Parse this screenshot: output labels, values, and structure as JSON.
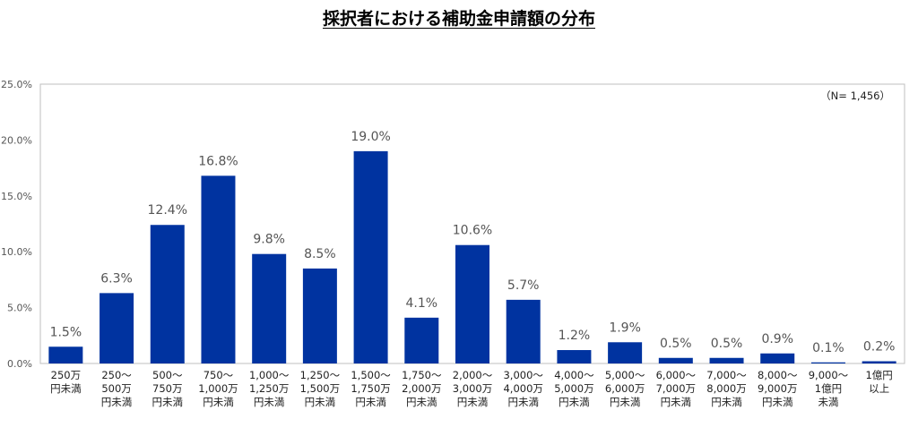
{
  "chart_data": {
    "type": "bar",
    "title": "採択者における補助金申請額の分布",
    "note": "（N= 1,456）",
    "color": "#0033a0",
    "ylim": [
      0,
      25
    ],
    "yticks": [
      "0.0%",
      "5.0%",
      "10.0%",
      "15.0%",
      "20.0%",
      "25.0%"
    ],
    "grid": false,
    "categories": [
      [
        "250万",
        "円未満"
      ],
      [
        "250～",
        "500万",
        "円未満"
      ],
      [
        "500～",
        "750万",
        "円未満"
      ],
      [
        "750～",
        "1,000万",
        "円未満"
      ],
      [
        "1,000～",
        "1,250万",
        "円未満"
      ],
      [
        "1,250～",
        "1,500万",
        "円未満"
      ],
      [
        "1,500～",
        "1,750万",
        "円未満"
      ],
      [
        "1,750～",
        "2,000万",
        "円未満"
      ],
      [
        "2,000～",
        "3,000万",
        "円未満"
      ],
      [
        "3,000～",
        "4,000万",
        "円未満"
      ],
      [
        "4,000～",
        "5,000万",
        "円未満"
      ],
      [
        "5,000～",
        "6,000万",
        "円未満"
      ],
      [
        "6,000～",
        "7,000万",
        "円未満"
      ],
      [
        "7,000～",
        "8,000万",
        "円未満"
      ],
      [
        "8,000～",
        "9,000万",
        "円未満"
      ],
      [
        "9,000～",
        "1億円",
        "未満"
      ],
      [
        "1億円",
        "以上"
      ]
    ],
    "values": [
      1.5,
      6.3,
      12.4,
      16.8,
      9.8,
      8.5,
      19.0,
      4.1,
      10.6,
      5.7,
      1.2,
      1.9,
      0.5,
      0.5,
      0.9,
      0.1,
      0.2
    ],
    "value_labels": [
      "1.5%",
      "6.3%",
      "12.4%",
      "16.8%",
      "9.8%",
      "8.5%",
      "19.0%",
      "4.1%",
      "10.6%",
      "5.7%",
      "1.2%",
      "1.9%",
      "0.5%",
      "0.5%",
      "0.9%",
      "0.1%",
      "0.2%"
    ]
  }
}
